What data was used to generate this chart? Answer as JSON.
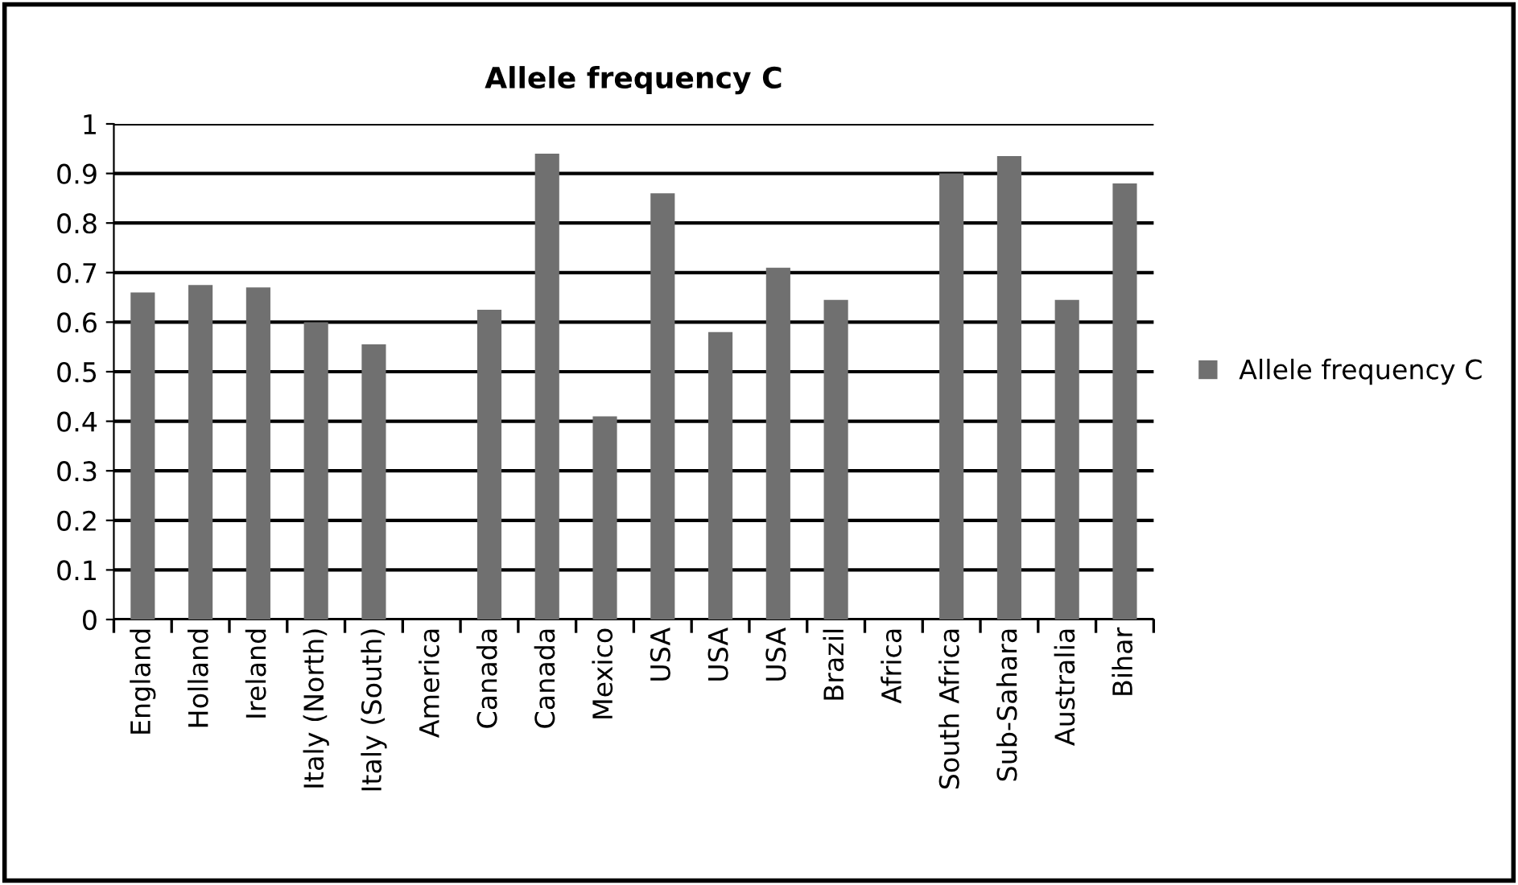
{
  "chart_data": {
    "type": "bar",
    "title": "Allele frequency C",
    "categories": [
      "England",
      "Holland",
      "Ireland",
      "Italy (North)",
      "Italy (South)",
      "America",
      "Canada",
      "Canada",
      "Mexico",
      "USA",
      "USA",
      "USA",
      "Brazil",
      "Africa",
      "South Africa",
      "Sub-Sahara",
      "Australia",
      "Bihar"
    ],
    "series": [
      {
        "name": "Allele frequency C",
        "color": "#707070",
        "values": [
          0.66,
          0.675,
          0.67,
          0.6,
          0.555,
          null,
          0.625,
          0.94,
          0.41,
          0.86,
          0.58,
          0.71,
          0.645,
          null,
          0.9,
          0.935,
          0.645,
          0.88
        ]
      }
    ],
    "ylim": [
      0,
      1
    ],
    "yticks": [
      0,
      0.1,
      0.2,
      0.3,
      0.4,
      0.5,
      0.6,
      0.7,
      0.8,
      0.9,
      1
    ],
    "grid": "y",
    "legend": "right"
  }
}
